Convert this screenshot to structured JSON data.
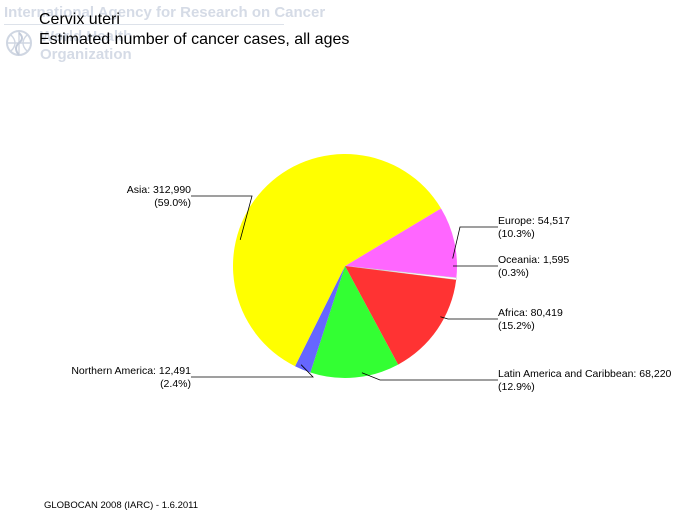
{
  "watermark": {
    "line1": "International Agency for Research on Cancer",
    "line2": "World Health",
    "line3": "Organization"
  },
  "chart_data": {
    "type": "pie",
    "title": "Cervix uteri",
    "subtitle": "Estimated number of cancer cases, all ages",
    "slices": [
      {
        "name": "Europe",
        "value": 54517,
        "value_text": "54,517",
        "percent_text": "(10.3%)",
        "color": "#ff66ff"
      },
      {
        "name": "Oceania",
        "value": 1595,
        "value_text": "1,595",
        "percent_text": "(0.3%)",
        "color": "#ffffff"
      },
      {
        "name": "Africa",
        "value": 80419,
        "value_text": "80,419",
        "percent_text": "(15.2%)",
        "color": "#ff3333"
      },
      {
        "name": "Latin America and Caribbean",
        "value": 68220,
        "value_text": "68,220",
        "percent_text": "(12.9%)",
        "color": "#33ff33"
      },
      {
        "name": "Northern America",
        "value": 12491,
        "value_text": "12,491",
        "percent_text": "(2.4%)",
        "color": "#6666ff"
      },
      {
        "name": "Asia",
        "value": 312990,
        "value_text": "312,990",
        "percent_text": "(59.0%)",
        "color": "#ffff00"
      }
    ]
  },
  "footer": "GLOBOCAN 2008 (IARC) - 1.6.2011"
}
